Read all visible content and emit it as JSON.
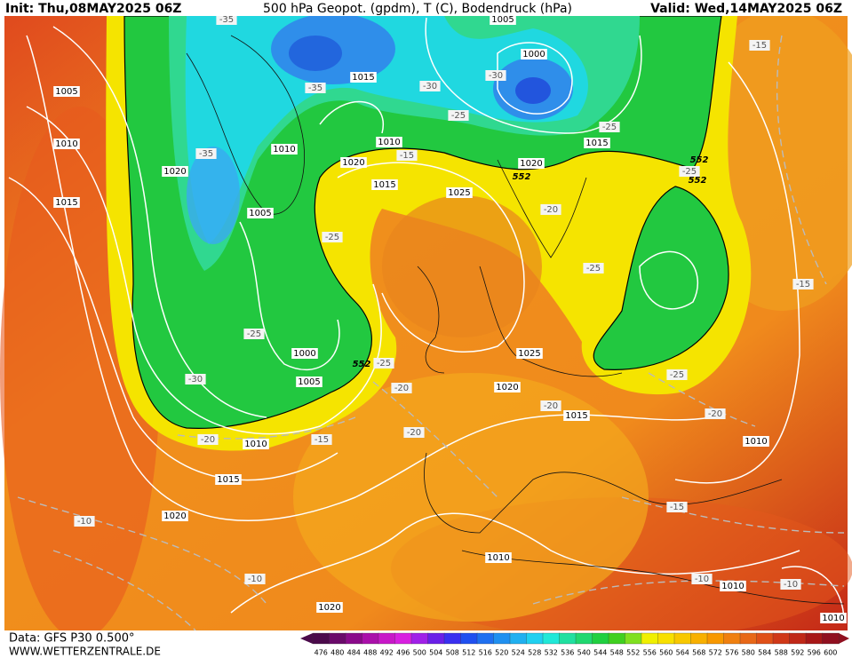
{
  "header": {
    "init": "Init: Thu,08MAY2025 06Z",
    "title": "500 hPa Geopot. (gpdm), T (C), Bodendruck (hPa)",
    "valid": "Valid: Wed,14MAY2025 06Z"
  },
  "footer": {
    "data": "Data: GFS P30 0.500°",
    "site": "WWW.WETTERZENTRALE.DE"
  },
  "colorbar": {
    "levels": [
      476,
      480,
      484,
      488,
      492,
      496,
      500,
      504,
      508,
      512,
      516,
      520,
      524,
      528,
      532,
      536,
      540,
      544,
      548,
      552,
      556,
      560,
      564,
      568,
      572,
      576,
      580,
      584,
      588,
      592,
      596,
      600
    ],
    "colors": [
      "#4b0a4b",
      "#6a0a6a",
      "#8a0a8a",
      "#aa10aa",
      "#c818c8",
      "#d820e0",
      "#a020e8",
      "#6a20e8",
      "#3a30f0",
      "#2050f0",
      "#2070f0",
      "#2090f0",
      "#20b0f0",
      "#20d0f0",
      "#20e8d8",
      "#20e0a0",
      "#20d870",
      "#20d040",
      "#40d020",
      "#80e020",
      "#f0f000",
      "#f8e000",
      "#f8c800",
      "#f8b000",
      "#f89800",
      "#f08010",
      "#e86818",
      "#e05018",
      "#d03818",
      "#c02818",
      "#a81818",
      "#901020"
    ]
  },
  "map": {
    "pressure_labels": [
      "1005",
      "1010",
      "1015",
      "1020",
      "1015",
      "1010",
      "1020",
      "1010",
      "1015",
      "1025",
      "1005",
      "1000",
      "1015",
      "1020",
      "1005",
      "1000",
      "1005",
      "1025",
      "1020",
      "1015",
      "1010",
      "1015",
      "1020",
      "1010",
      "1020",
      "1010",
      "1010",
      "1010"
    ],
    "temperature_labels": [
      "-35",
      "-35",
      "-30",
      "-30",
      "-25",
      "-25",
      "-35",
      "-15",
      "-20",
      "-25",
      "-25",
      "-25",
      "-30",
      "-25",
      "-20",
      "-20",
      "-15",
      "-20",
      "-20",
      "-25",
      "-20",
      "-15",
      "-15",
      "-15",
      "-10",
      "-10",
      "-10",
      "-10",
      "-25"
    ],
    "geopotential_labels": [
      "552",
      "552",
      "552",
      "552"
    ]
  }
}
